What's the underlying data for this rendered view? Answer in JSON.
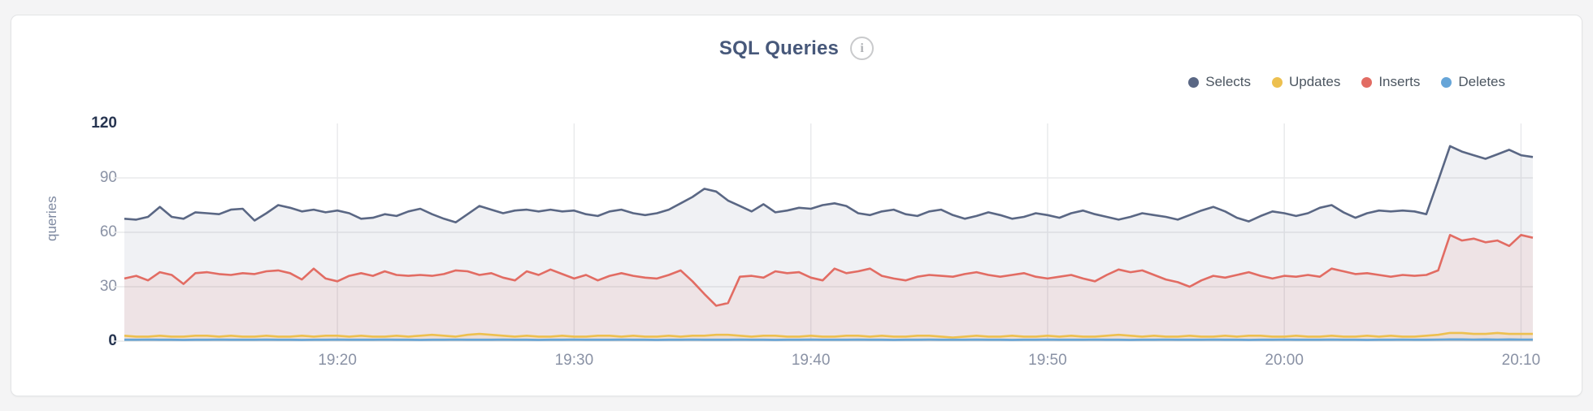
{
  "page": {
    "background": "#f4f4f5",
    "card_background": "#ffffff"
  },
  "header": {
    "title": "SQL Queries",
    "info_icon_glyph": "i"
  },
  "legend": [
    {
      "label": "Selects",
      "color": "#5a6784"
    },
    {
      "label": "Updates",
      "color": "#edc04f"
    },
    {
      "label": "Inserts",
      "color": "#e26c63"
    },
    {
      "label": "Deletes",
      "color": "#66a5d8"
    }
  ],
  "colors": {
    "grid": "#e9eaec",
    "tick_normal": "#8a92a5",
    "tick_emphasis": "#263450",
    "axis_title": "#7d88a0"
  },
  "chart_data": {
    "type": "area",
    "title": "SQL Queries",
    "xlabel": "",
    "ylabel": "queries",
    "ylim": [
      0,
      120
    ],
    "y_ticks": [
      {
        "value": 0,
        "label": "0",
        "emphasis": true
      },
      {
        "value": 30,
        "label": "30",
        "emphasis": false
      },
      {
        "value": 60,
        "label": "60",
        "emphasis": false
      },
      {
        "value": 90,
        "label": "90",
        "emphasis": false
      },
      {
        "value": 120,
        "label": "120",
        "emphasis": true
      }
    ],
    "x_start_minute": 11,
    "x_step_minute": 0.5,
    "x_end_minute": 70.5,
    "x_time_base": "19:00",
    "sample_interval_seconds": 30,
    "x_ticks": [
      {
        "minute": 20,
        "label": "19:20"
      },
      {
        "minute": 30,
        "label": "19:30"
      },
      {
        "minute": 40,
        "label": "19:40"
      },
      {
        "minute": 50,
        "label": "19:50"
      },
      {
        "minute": 60,
        "label": "20:00"
      },
      {
        "minute": 70,
        "label": "20:10"
      }
    ],
    "grid": true,
    "legend_position": "top-right",
    "series": [
      {
        "name": "Selects",
        "color": "#5a6784",
        "fill": "rgba(90,103,132,0.09)",
        "values": [
          67.5,
          67,
          68.5,
          74,
          68.5,
          67.5,
          71,
          70.5,
          70,
          72.5,
          73,
          66.5,
          70.5,
          75,
          73.5,
          71.5,
          72.5,
          71,
          72,
          70.5,
          67.5,
          68,
          70,
          69,
          71.5,
          73,
          70,
          67.5,
          65.5,
          70,
          74.5,
          72.5,
          70.5,
          72,
          72.5,
          71.5,
          72.5,
          71.5,
          72,
          70,
          69,
          71.5,
          72.5,
          70.5,
          69.5,
          70.5,
          72.5,
          76,
          79.5,
          84,
          82.5,
          77.5,
          74.5,
          71.5,
          75.5,
          71,
          72,
          73.5,
          73,
          75,
          76,
          74.5,
          70.5,
          69.5,
          71.5,
          72.5,
          70,
          69,
          71.5,
          72.5,
          69.5,
          67.5,
          69,
          71,
          69.5,
          67.5,
          68.5,
          70.5,
          69.5,
          68,
          70.5,
          72,
          70,
          68.5,
          67,
          68.5,
          70.5,
          69.5,
          68.5,
          67,
          69.5,
          72,
          74,
          71.5,
          68,
          66,
          69,
          71.5,
          70.5,
          69,
          70.5,
          73.5,
          75,
          71,
          68,
          70.5,
          72,
          71.5,
          72,
          71.5,
          70,
          88.5,
          107.5,
          104.5,
          102.5,
          100.5,
          103,
          105.5,
          102.5,
          101.5
        ]
      },
      {
        "name": "Inserts",
        "color": "#e26c63",
        "fill": "rgba(226,108,99,0.10)",
        "values": [
          34.5,
          36,
          33.5,
          38,
          36.5,
          31.5,
          37.5,
          38,
          37,
          36.5,
          37.5,
          37,
          38.5,
          39,
          37.5,
          34,
          40,
          34.5,
          33,
          36,
          37.5,
          36,
          38.5,
          36.5,
          36,
          36.5,
          36,
          37,
          39,
          38.5,
          36.5,
          37.5,
          35,
          33.5,
          38.5,
          36.5,
          39.5,
          37,
          34.5,
          36.5,
          33.5,
          36,
          37.5,
          36,
          35,
          34.5,
          36.5,
          39,
          33,
          26,
          19.5,
          21,
          35.5,
          36,
          35,
          38.5,
          37.5,
          38,
          35,
          33.5,
          40,
          37.5,
          38.5,
          40,
          36,
          34.5,
          33.5,
          35.5,
          36.5,
          36,
          35.5,
          37,
          38,
          36.5,
          35.5,
          36.5,
          37.5,
          35.5,
          34.5,
          35.5,
          36.5,
          34.5,
          33,
          36.5,
          39.5,
          38,
          39,
          36.5,
          34,
          32.5,
          30,
          33.5,
          36,
          35,
          36.5,
          38,
          36,
          34.5,
          36,
          35.5,
          36.5,
          35.5,
          40,
          38.5,
          37,
          37.5,
          36.5,
          35.5,
          36.5,
          36,
          36.5,
          39,
          58.5,
          55.5,
          56.5,
          54.5,
          55.5,
          52.5,
          58.5,
          57
        ]
      },
      {
        "name": "Updates",
        "color": "#edc04f",
        "fill": "rgba(237,192,79,0.12)",
        "values": [
          3,
          2.5,
          2.5,
          3,
          2.5,
          2.5,
          3,
          3,
          2.5,
          3,
          2.5,
          2.5,
          3,
          2.5,
          2.5,
          3,
          2.5,
          3,
          3,
          2.5,
          3,
          2.5,
          2.5,
          3,
          2.5,
          3,
          3.5,
          3,
          2.5,
          3.5,
          4,
          3.5,
          3,
          2.5,
          3,
          2.5,
          2.5,
          3,
          2.5,
          2.5,
          3,
          3,
          2.5,
          3,
          2.5,
          2.5,
          3,
          2.5,
          3,
          3,
          3.5,
          3.5,
          3,
          2.5,
          3,
          3,
          2.5,
          2.5,
          3,
          2.5,
          2.5,
          3,
          3,
          2.5,
          3,
          2.5,
          2.5,
          3,
          3,
          2.5,
          2,
          2.5,
          3,
          2.5,
          2.5,
          3,
          2.5,
          2.5,
          3,
          2.5,
          3,
          2.5,
          2.5,
          3,
          3.5,
          3,
          2.5,
          3,
          2.5,
          2.5,
          3,
          2.5,
          2.5,
          3,
          2.5,
          3,
          3,
          2.5,
          2.5,
          3,
          2.5,
          2.5,
          3,
          2.5,
          2.5,
          3,
          2.5,
          3,
          2.5,
          2.5,
          3,
          3.5,
          4.5,
          4.5,
          4,
          4,
          4.5,
          4,
          4,
          4
        ]
      },
      {
        "name": "Deletes",
        "color": "#66a5d8",
        "fill": "rgba(102,165,216,0.30)",
        "values": [
          0.8,
          0.8,
          0.9,
          0.8,
          0.8,
          0.7,
          0.8,
          0.8,
          0.9,
          0.8,
          0.8,
          0.8,
          0.9,
          0.8,
          0.8,
          0.7,
          0.8,
          0.8,
          0.9,
          0.8,
          0.8,
          0.8,
          0.9,
          0.8,
          0.8,
          0.7,
          0.8,
          0.8,
          0.9,
          0.8,
          0.8,
          0.8,
          0.9,
          0.8,
          0.8,
          0.7,
          0.8,
          0.8,
          0.9,
          0.8,
          0.8,
          0.8,
          0.9,
          0.8,
          0.8,
          0.7,
          0.8,
          0.8,
          0.9,
          0.8,
          0.8,
          0.8,
          0.9,
          0.8,
          0.8,
          0.7,
          0.8,
          0.8,
          0.9,
          0.8,
          0.8,
          0.8,
          0.9,
          0.8,
          0.8,
          0.7,
          0.8,
          0.8,
          0.9,
          0.8,
          0.8,
          0.8,
          0.9,
          0.8,
          0.8,
          0.7,
          0.8,
          0.8,
          0.9,
          0.8,
          0.8,
          0.8,
          0.9,
          0.8,
          0.8,
          0.7,
          0.8,
          0.8,
          0.9,
          0.8,
          0.8,
          0.8,
          0.9,
          0.8,
          0.8,
          0.7,
          0.8,
          0.8,
          0.9,
          0.8,
          0.8,
          0.8,
          0.9,
          0.8,
          0.8,
          0.7,
          0.8,
          0.8,
          0.9,
          0.8,
          0.8,
          0.9,
          1,
          1,
          0.9,
          1,
          0.9,
          1,
          0.9,
          0.9
        ]
      }
    ]
  }
}
